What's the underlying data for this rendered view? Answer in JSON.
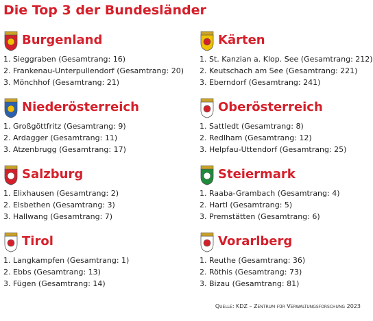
{
  "title": "Die Top 3 der Bundesländer",
  "columns": [
    [
      {
        "name": "Burgenland",
        "items": [
          "1. Sieggraben (Gesamtrang: 16)",
          "2. Frankenau-Unterpullendorf (Gesamtrang: 20)",
          "3. Mönchhof (Gesamtrang: 21)"
        ]
      },
      {
        "name": "Niederösterreich",
        "items": [
          "1. Großgöttfritz (Gesamtrang: 9)",
          "2. Ardagger (Gesamtrang: 11)",
          "3. Atzenbrugg (Gesamtrang: 17)"
        ]
      },
      {
        "name": "Salzburg",
        "items": [
          "1. Elixhausen (Gesamtrang: 2)",
          "2. Elsbethen (Gesamtrang: 3)",
          "3. Hallwang (Gesamtrang: 7)"
        ]
      },
      {
        "name": "Tirol",
        "items": [
          "1. Langkampfen (Gesamtrang: 1)",
          "2. Ebbs (Gesamtrang: 13)",
          "3. Fügen (Gesamtrang: 14)"
        ]
      }
    ],
    [
      {
        "name": "Kärten",
        "items": [
          "1. St. Kanzian a. Klop. See (Gesamtrang: 212)",
          "2. Keutschach am See (Gesamtrang: 221)",
          "3. Eberndorf (Gesamtrang: 241)"
        ]
      },
      {
        "name": "Oberösterreich",
        "items": [
          "1. Sattledt (Gesamtrang: 8)",
          "2. Redlham (Gesamtrang: 12)",
          "3. Helpfau-Uttendorf (Gesamtrang: 25)"
        ]
      },
      {
        "name": "Steiermark",
        "items": [
          "1. Raaba-Grambach (Gesamtrang: 4)",
          "2. Hartl (Gesamtrang: 5)",
          "3. Premstätten (Gesamtrang: 6)"
        ]
      },
      {
        "name": "Vorarlberg",
        "items": [
          "1. Reuthe (Gesamtrang: 36)",
          "2. Röthis (Gesamtrang: 73)",
          "3. Bizau (Gesamtrang: 81)"
        ]
      }
    ]
  ],
  "source": "Quelle: KDZ – Zentrum für Verwaltungsforschung 2023"
}
